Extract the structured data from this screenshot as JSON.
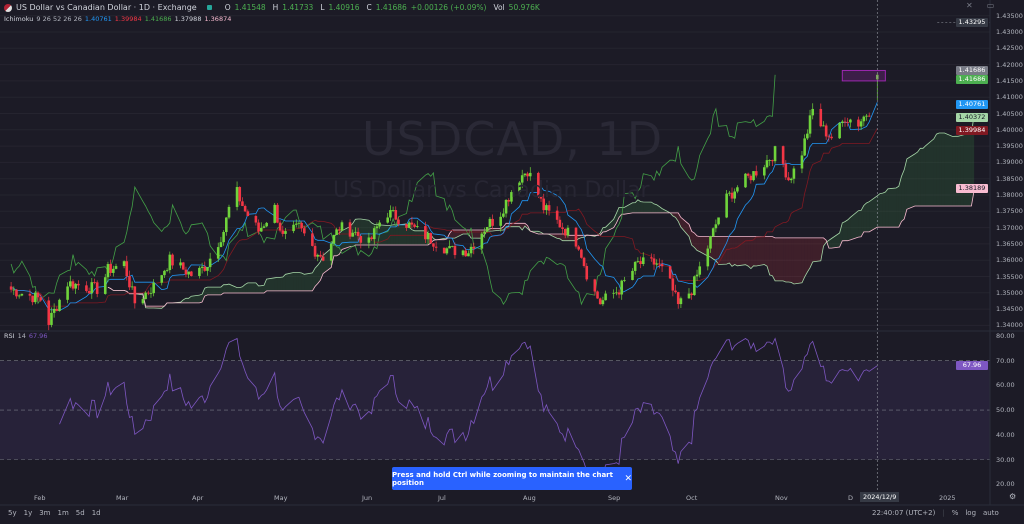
{
  "header": {
    "title": "US Dollar vs Canadian Dollar · 1D · Exchange",
    "ohlc": [
      {
        "key": "O",
        "value": "1.41548"
      },
      {
        "key": "H",
        "value": "1.41733"
      },
      {
        "key": "L",
        "value": "1.40916"
      },
      {
        "key": "C",
        "value": "1.41686"
      }
    ],
    "change": "+0.00126 (+0.09%)",
    "volume_key": "Vol",
    "volume": "50.976K"
  },
  "ichimoku": {
    "name": "Ichimoku",
    "params": "9 26 52 26 26",
    "values": [
      {
        "value": "1.40761",
        "color": "#2196f3"
      },
      {
        "value": "1.39984",
        "color": "#f23645"
      },
      {
        "value": "1.41686",
        "color": "#4caf50"
      },
      {
        "value": "1.37988",
        "color": "#a5d6a7"
      },
      {
        "value": "1.36874",
        "color": "#f8bbd0"
      }
    ]
  },
  "rsi": {
    "name": "RSI",
    "params": "14",
    "value": "67.96",
    "color": "#7e57c2"
  },
  "watermark": {
    "symbol": "USDCAD, 1D",
    "description": "US Dollar vs Canadian Dollar"
  },
  "price_axis": {
    "ticks": [
      "1.43500",
      "1.43000",
      "1.42500",
      "1.42000",
      "1.41500",
      "1.41000",
      "1.40500",
      "1.40000",
      "1.39500",
      "1.39000",
      "1.38500",
      "1.38000",
      "1.37500",
      "1.37000",
      "1.36500",
      "1.36000",
      "1.35500",
      "1.35000",
      "1.34500",
      "1.34000"
    ],
    "tags": [
      {
        "value": "1.43295",
        "bg": "#363a45",
        "fg": "#ffffff"
      },
      {
        "value": "1.41686",
        "bg": "#787b86",
        "fg": "#ffffff"
      },
      {
        "value": "1.41686",
        "bg": "#4caf50",
        "fg": "#ffffff"
      },
      {
        "value": "1.40761",
        "bg": "#2196f3",
        "fg": "#ffffff"
      },
      {
        "value": "1.40372",
        "bg": "#a5d6a7",
        "fg": "#131722"
      },
      {
        "value": "1.39984",
        "bg": "#801922",
        "fg": "#ffffff"
      },
      {
        "value": "1.38189",
        "bg": "#f8bbd0",
        "fg": "#131722"
      }
    ]
  },
  "rsi_axis": {
    "ticks": [
      "80.00",
      "70.00",
      "60.00",
      "50.00",
      "40.00",
      "30.00",
      "20.00"
    ],
    "tag": "67.96"
  },
  "time_axis": {
    "labels": [
      "Feb",
      "Mar",
      "Apr",
      "May",
      "Jun",
      "Jul",
      "Aug",
      "Sep",
      "Oct",
      "Nov",
      "D",
      "2025"
    ],
    "crosshair_date": "2024/12/9"
  },
  "toast": {
    "message": "Press and hold Ctrl while zooming to maintain the chart position"
  },
  "bottom_bar": {
    "ranges": [
      "5y",
      "1y",
      "3m",
      "1m",
      "5d",
      "1d"
    ],
    "clock": "22:40:07 (UTC+2)",
    "options": [
      "%",
      "log",
      "auto"
    ]
  },
  "colors": {
    "background": "#1c1b26",
    "up": "#6fd43b",
    "down": "#f23645",
    "tenkan": "#2196f3",
    "kijun": "#801922",
    "chikou": "#43a047",
    "span_a": "#a5d6a7",
    "span_b": "#f8bbd0",
    "rsi": "#7e57c2",
    "toast": "#2962ff",
    "drawing": "#9c27b0"
  },
  "chart_data": {
    "type": "candlestick",
    "symbol": "USDCAD",
    "interval": "1D",
    "ylim": [
      1.335,
      1.437
    ],
    "rsi_ylim": [
      17,
      80
    ],
    "rsi_bands": [
      30,
      50,
      70
    ],
    "approx_closes": [
      [
        "2024-01-22",
        1.351
      ],
      [
        "2024-02-02",
        1.348
      ],
      [
        "2024-02-05",
        1.341
      ],
      [
        "2024-02-12",
        1.353
      ],
      [
        "2024-02-24",
        1.351
      ],
      [
        "2024-02-27",
        1.357
      ],
      [
        "2024-03-04",
        1.359
      ],
      [
        "2024-03-08",
        1.347
      ],
      [
        "2024-03-15",
        1.352
      ],
      [
        "2024-03-21",
        1.36
      ],
      [
        "2024-03-30",
        1.355
      ],
      [
        "2024-04-04",
        1.359
      ],
      [
        "2024-04-10",
        1.369
      ],
      [
        "2024-04-14",
        1.3825
      ],
      [
        "2024-04-18",
        1.375
      ],
      [
        "2024-04-23",
        1.369
      ],
      [
        "2024-04-29",
        1.376
      ],
      [
        "2024-05-02",
        1.367
      ],
      [
        "2024-05-08",
        1.37
      ],
      [
        "2024-05-14",
        1.363
      ],
      [
        "2024-05-17",
        1.361
      ],
      [
        "2024-05-23",
        1.37
      ],
      [
        "2024-05-28",
        1.369
      ],
      [
        "2024-06-03",
        1.365
      ],
      [
        "2024-06-09",
        1.375
      ],
      [
        "2024-06-14",
        1.373
      ],
      [
        "2024-06-21",
        1.369
      ],
      [
        "2024-07-03",
        1.363
      ],
      [
        "2024-07-10",
        1.363
      ],
      [
        "2024-07-17",
        1.371
      ],
      [
        "2024-07-21",
        1.373
      ],
      [
        "2024-07-28",
        1.3846
      ],
      [
        "2024-08-01",
        1.3877
      ],
      [
        "2024-08-07",
        1.376
      ],
      [
        "2024-08-13",
        1.371
      ],
      [
        "2024-08-20",
        1.365
      ],
      [
        "2024-08-24",
        1.353
      ],
      [
        "2024-08-28",
        1.347
      ],
      [
        "2024-09-04",
        1.351
      ],
      [
        "2024-09-11",
        1.359
      ],
      [
        "2024-09-18",
        1.359
      ],
      [
        "2024-09-22",
        1.355
      ],
      [
        "2024-09-26",
        1.346
      ],
      [
        "2024-10-01",
        1.351
      ],
      [
        "2024-10-07",
        1.364
      ],
      [
        "2024-10-13",
        1.378
      ],
      [
        "2024-10-18",
        1.3825
      ],
      [
        "2024-10-26",
        1.388
      ],
      [
        "2024-11-02",
        1.394
      ],
      [
        "2024-11-06",
        1.385
      ],
      [
        "2024-11-10",
        1.39
      ],
      [
        "2024-11-15",
        1.406
      ],
      [
        "2024-11-19",
        1.4
      ],
      [
        "2024-11-23",
        1.397
      ],
      [
        "2024-11-27",
        1.404
      ],
      [
        "2024-12-02",
        1.402
      ],
      [
        "2024-12-06",
        1.406
      ],
      [
        "2024-12-09",
        1.41686
      ]
    ],
    "last_bar": {
      "date": "2024-12-09",
      "open": 1.41548,
      "high": 1.41733,
      "low": 1.40916,
      "close": 1.41686
    },
    "rsi_last": 67.96,
    "drawing_rectangle": {
      "from_date": "2024-11-26",
      "to_date": "2024-12-12",
      "top": 1.4182,
      "bottom": 1.415
    }
  }
}
